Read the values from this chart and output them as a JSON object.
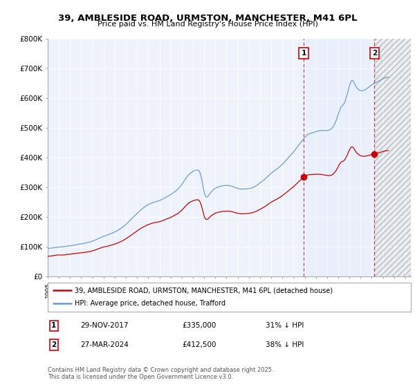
{
  "title": "39, AMBLESIDE ROAD, URMSTON, MANCHESTER, M41 6PL",
  "subtitle": "Price paid vs. HM Land Registry's House Price Index (HPI)",
  "legend_line1": "39, AMBLESIDE ROAD, URMSTON, MANCHESTER, M41 6PL (detached house)",
  "legend_line2": "HPI: Average price, detached house, Trafford",
  "transaction1_date": "29-NOV-2017",
  "transaction1_price": "£335,000",
  "transaction1_hpi": "31% ↓ HPI",
  "transaction2_date": "27-MAR-2024",
  "transaction2_price": "£412,500",
  "transaction2_hpi": "38% ↓ HPI",
  "footer": "Contains HM Land Registry data © Crown copyright and database right 2025.\nThis data is licensed under the Open Government Licence v3.0.",
  "red_line_color": "#cc0000",
  "blue_line_color": "#6699cc",
  "blue_fill_color": "#ddeeff",
  "marker_color": "#cc0000",
  "background_color": "#eef2fa",
  "grid_color": "#ffffff",
  "hatch_color": "#cccccc",
  "ylim": [
    0,
    800000
  ],
  "xlim_start": 1995.0,
  "xlim_end": 2027.5,
  "transaction1_year": 2017.916,
  "transaction2_year": 2024.25
}
